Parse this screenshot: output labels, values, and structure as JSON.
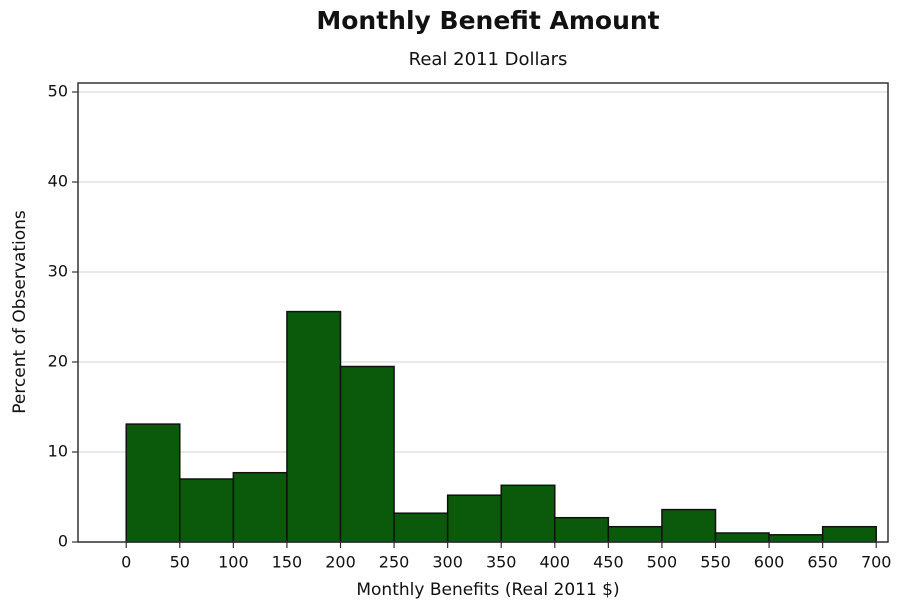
{
  "chart_data": {
    "type": "histogram",
    "title": "Monthly Benefit Amount",
    "subtitle": "Real 2011 Dollars",
    "x_label": "Monthly Benefits (Real 2011 $)",
    "y_label": "Percent of Observations",
    "bins": [
      0,
      50,
      100,
      150,
      200,
      250,
      300,
      350,
      400,
      450,
      500,
      550,
      600,
      650,
      700
    ],
    "values": [
      13.1,
      7.0,
      7.7,
      25.6,
      19.5,
      3.2,
      5.2,
      6.3,
      2.7,
      1.7,
      3.6,
      1.0,
      0.8,
      1.7
    ],
    "color": "#0b5a0b",
    "xlim": [
      -45,
      711
    ],
    "ylim": [
      0,
      51
    ],
    "xticks": [
      0,
      50,
      100,
      150,
      200,
      250,
      300,
      350,
      400,
      450,
      500,
      550,
      600,
      650,
      700
    ],
    "yticks": [
      0,
      10,
      20,
      30,
      40,
      50
    ],
    "grid": true
  }
}
